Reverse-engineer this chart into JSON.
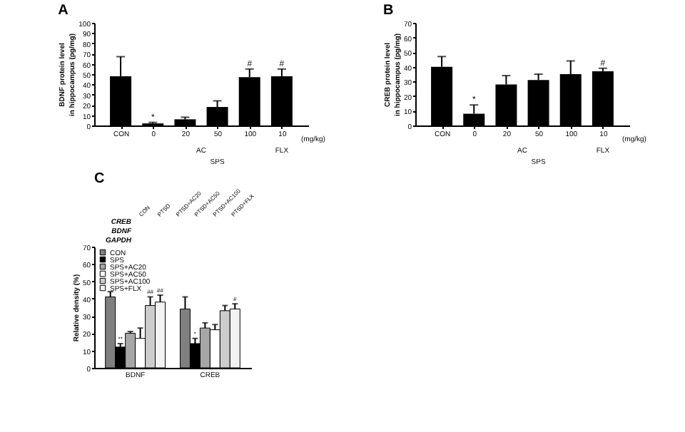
{
  "chart_data": [
    {
      "type": "bar",
      "title": "A",
      "ylabel": "BDNF protein level\nin hippocampus (pg/mg)",
      "categories": [
        "CON",
        "0",
        "20",
        "50",
        "100",
        "10"
      ],
      "values": [
        48,
        2,
        6,
        18,
        47,
        48
      ],
      "errors": [
        [
          48,
          67
        ],
        [
          2,
          3
        ],
        [
          6,
          8
        ],
        [
          18,
          24
        ],
        [
          47,
          55
        ],
        [
          48,
          55
        ]
      ],
      "value_labels": [
        null,
        "*",
        null,
        null,
        "#",
        "#"
      ],
      "color": "#000000",
      "ylim": [
        0,
        100
      ],
      "yticks": [
        0,
        10,
        20,
        30,
        40,
        50,
        60,
        70,
        80,
        90,
        100
      ],
      "grid": false,
      "annotations": [
        "(mg/kg)",
        "AC",
        "FLX",
        "SPS"
      ]
    },
    {
      "type": "bar",
      "title": "B",
      "ylabel": "CREB protein level\nin hippocampus (pg/mg)",
      "categories": [
        "CON",
        "0",
        "20",
        "50",
        "100",
        "10"
      ],
      "values": [
        40,
        8,
        28,
        31,
        35,
        37
      ],
      "errors": [
        [
          40,
          47
        ],
        [
          8,
          14
        ],
        [
          28,
          34
        ],
        [
          31,
          35
        ],
        [
          35,
          44
        ],
        [
          37,
          39
        ]
      ],
      "value_labels": [
        null,
        "*",
        null,
        null,
        null,
        "#"
      ],
      "color": "#000000",
      "ylim": [
        0,
        70
      ],
      "yticks": [
        0,
        10,
        20,
        30,
        40,
        50,
        60,
        70
      ],
      "grid": false,
      "annotations": [
        "(mg/kg)",
        "AC",
        "FLX",
        "SPS"
      ]
    },
    {
      "type": "other",
      "title": "C",
      "categories": [
        "CON",
        "PTSD",
        "PTSD+AC20",
        "PTSD+AC50",
        "PTSD+AC100",
        "PTSD+FLX"
      ],
      "y_categories": [
        "CREB",
        "BDNF",
        "GAPDH"
      ]
    },
    {
      "type": "bar",
      "ylabel": "Relative density (%)",
      "categories": [
        "BDNF",
        "CREB"
      ],
      "ylim": [
        0,
        70
      ],
      "yticks": [
        0,
        10,
        20,
        30,
        40,
        50,
        60,
        70
      ],
      "grid": false,
      "legend": "top left",
      "series": [
        {
          "name": "CON",
          "color": "#7f7f7f",
          "values": [
            41,
            34
          ],
          "errors": [
            [
              41,
              44
            ],
            [
              34,
              41
            ]
          ],
          "value_labels": [
            null,
            null
          ]
        },
        {
          "name": "SPS",
          "color": "#000000",
          "values": [
            12,
            14
          ],
          "errors": [
            [
              12,
              14
            ],
            [
              14,
              17
            ]
          ],
          "value_labels": [
            "**",
            "*"
          ]
        },
        {
          "name": "SPS+AC20",
          "color": "#a6a6a6",
          "values": [
            20,
            23
          ],
          "errors": [
            [
              20,
              21
            ],
            [
              23,
              26
            ]
          ],
          "value_labels": [
            null,
            null
          ]
        },
        {
          "name": "SPS+AC50",
          "color": "#ffffff",
          "values": [
            17,
            22
          ],
          "errors": [
            [
              17,
              23
            ],
            [
              22,
              25
            ]
          ],
          "value_labels": [
            null,
            null
          ]
        },
        {
          "name": "SPS+AC100",
          "color": "#cccccc",
          "values": [
            36,
            33
          ],
          "errors": [
            [
              36,
              41
            ],
            [
              33,
              36
            ]
          ],
          "value_labels": [
            "##",
            null
          ]
        },
        {
          "name": "SPS+FLX",
          "color": "#f2f2f2",
          "values": [
            38,
            34
          ],
          "errors": [
            [
              38,
              42
            ],
            [
              34,
              37
            ]
          ],
          "value_labels": [
            "##",
            "#"
          ]
        }
      ]
    }
  ]
}
